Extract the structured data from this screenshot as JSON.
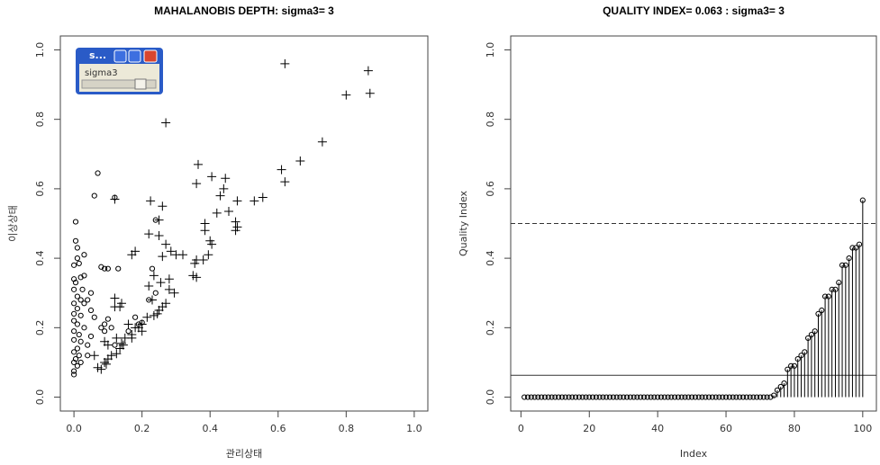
{
  "chart_data": [
    {
      "type": "scatter",
      "title": "MAHALANOBIS DEPTH: sigma3= 3",
      "x_label": "관리상태",
      "y_label": "이상상태",
      "xlim": [
        -0.04,
        1.04
      ],
      "ylim": [
        -0.04,
        1.04
      ],
      "xticks": [
        {
          "value": 0,
          "label": "0.0"
        },
        0.2,
        0.4,
        0.6,
        0.8,
        {
          "value": 1,
          "label": "1.0"
        }
      ],
      "yticks": [
        {
          "value": 0,
          "label": "0.0"
        },
        0.2,
        0.4,
        0.6,
        0.8,
        {
          "value": 1,
          "label": "1.0"
        }
      ],
      "series": [
        {
          "marker": "+",
          "color": "#000000",
          "x": [
            0.62,
            0.865,
            0.87,
            0.8,
            0.27,
            0.73,
            0.665,
            0.365,
            0.61,
            0.405,
            0.445,
            0.36,
            0.62,
            0.44,
            0.43,
            0.555,
            0.53,
            0.12,
            0.225,
            0.48,
            0.26,
            0.455,
            0.42,
            0.385,
            0.25,
            0.475,
            0.48,
            0.475,
            0.22,
            0.25,
            0.385,
            0.4,
            0.405,
            0.27,
            0.285,
            0.18,
            0.17,
            0.3,
            0.32,
            0.395,
            0.26,
            0.36,
            0.38,
            0.355,
            0.35,
            0.36,
            0.235,
            0.255,
            0.28,
            0.22,
            0.28,
            0.295,
            0.23,
            0.12,
            0.14,
            0.27,
            0.26,
            0.25,
            0.245,
            0.235,
            0.215,
            0.2,
            0.16,
            0.19,
            0.18,
            0.2,
            0.17,
            0.17,
            0.15,
            0.125,
            0.14,
            0.145,
            0.135,
            0.125,
            0.11,
            0.09,
            0.1,
            0.06,
            0.07,
            0.08,
            0.09,
            0.095,
            0.1,
            0.12,
            0.135
          ],
          "values": [
            0.96,
            0.94,
            0.875,
            0.87,
            0.79,
            0.735,
            0.68,
            0.67,
            0.655,
            0.635,
            0.63,
            0.615,
            0.62,
            0.6,
            0.58,
            0.575,
            0.565,
            0.57,
            0.565,
            0.565,
            0.55,
            0.535,
            0.53,
            0.5,
            0.51,
            0.505,
            0.49,
            0.48,
            0.47,
            0.465,
            0.48,
            0.45,
            0.44,
            0.44,
            0.42,
            0.42,
            0.41,
            0.41,
            0.41,
            0.41,
            0.405,
            0.395,
            0.395,
            0.385,
            0.35,
            0.345,
            0.35,
            0.33,
            0.34,
            0.32,
            0.31,
            0.3,
            0.28,
            0.285,
            0.27,
            0.27,
            0.26,
            0.25,
            0.24,
            0.235,
            0.23,
            0.21,
            0.21,
            0.2,
            0.2,
            0.19,
            0.18,
            0.17,
            0.17,
            0.17,
            0.155,
            0.15,
            0.14,
            0.125,
            0.12,
            0.16,
            0.15,
            0.12,
            0.085,
            0.08,
            0.1,
            0.095,
            0.11,
            0.26,
            0.26
          ]
        },
        {
          "marker": "o",
          "color": "#000000",
          "x": [
            0.07,
            0.06,
            0.12,
            0.005,
            0.24,
            0.005,
            0.01,
            0.03,
            0.01,
            0.015,
            0.0,
            0.08,
            0.09,
            0.1,
            0.13,
            0.23,
            0.02,
            0.0,
            0.005,
            0.03,
            0.0,
            0.05,
            0.01,
            0.02,
            0.04,
            0.0,
            0.03,
            0.01,
            0.05,
            0.0,
            0.02,
            0.1,
            0.09,
            0.0,
            0.01,
            0.03,
            0.0,
            0.015,
            0.05,
            0.0,
            0.02,
            0.04,
            0.01,
            0.0,
            0.015,
            0.005,
            0.0,
            0.01,
            0.0,
            0.0,
            0.04,
            0.02,
            0.09,
            0.11,
            0.18,
            0.19,
            0.2,
            0.16,
            0.12,
            0.22,
            0.24,
            0.08,
            0.06,
            0.025
          ],
          "values": [
            0.645,
            0.58,
            0.575,
            0.505,
            0.51,
            0.45,
            0.43,
            0.41,
            0.4,
            0.385,
            0.38,
            0.375,
            0.37,
            0.37,
            0.37,
            0.37,
            0.345,
            0.34,
            0.33,
            0.35,
            0.31,
            0.3,
            0.29,
            0.28,
            0.28,
            0.27,
            0.27,
            0.255,
            0.25,
            0.24,
            0.235,
            0.225,
            0.21,
            0.22,
            0.21,
            0.2,
            0.19,
            0.18,
            0.175,
            0.165,
            0.16,
            0.15,
            0.14,
            0.13,
            0.12,
            0.11,
            0.1,
            0.09,
            0.075,
            0.065,
            0.12,
            0.1,
            0.19,
            0.2,
            0.23,
            0.21,
            0.215,
            0.19,
            0.15,
            0.28,
            0.3,
            0.2,
            0.23,
            0.31
          ]
        }
      ]
    },
    {
      "type": "stem",
      "title": "QUALITY INDEX= 0.063 : sigma3= 3",
      "x_label": "Index",
      "y_label": "Quality Index",
      "xlim": [
        -3,
        104
      ],
      "ylim": [
        -0.04,
        1.04
      ],
      "xticks": [
        0,
        20,
        40,
        60,
        80,
        100
      ],
      "yticks": [
        {
          "value": 0,
          "label": "0.0"
        },
        0.2,
        0.4,
        0.6,
        0.8,
        {
          "value": 1,
          "label": "1.0"
        }
      ],
      "hlines": [
        {
          "value": 0.5,
          "style": "dashed"
        },
        {
          "value": 0.063,
          "style": "solid"
        }
      ],
      "series": [
        {
          "marker": "o",
          "color": "#000000",
          "x": [
            1,
            2,
            3,
            4,
            5,
            6,
            7,
            8,
            9,
            10,
            11,
            12,
            13,
            14,
            15,
            16,
            17,
            18,
            19,
            20,
            21,
            22,
            23,
            24,
            25,
            26,
            27,
            28,
            29,
            30,
            31,
            32,
            33,
            34,
            35,
            36,
            37,
            38,
            39,
            40,
            41,
            42,
            43,
            44,
            45,
            46,
            47,
            48,
            49,
            50,
            51,
            52,
            53,
            54,
            55,
            56,
            57,
            58,
            59,
            60,
            61,
            62,
            63,
            64,
            65,
            66,
            67,
            68,
            69,
            70,
            71,
            72,
            73,
            74,
            75,
            76,
            77,
            78,
            79,
            80,
            81,
            82,
            83,
            84,
            85,
            86,
            87,
            88,
            89,
            90,
            91,
            92,
            93,
            94,
            95,
            96,
            97,
            98,
            99,
            100
          ],
          "values": [
            0,
            0,
            0,
            0,
            0,
            0,
            0,
            0,
            0,
            0,
            0,
            0,
            0,
            0,
            0,
            0,
            0,
            0,
            0,
            0,
            0,
            0,
            0,
            0,
            0,
            0,
            0,
            0,
            0,
            0,
            0,
            0,
            0,
            0,
            0,
            0,
            0,
            0,
            0,
            0,
            0,
            0,
            0,
            0,
            0,
            0,
            0,
            0,
            0,
            0,
            0,
            0,
            0,
            0,
            0,
            0,
            0,
            0,
            0,
            0,
            0,
            0,
            0,
            0,
            0,
            0,
            0,
            0,
            0,
            0,
            0,
            0,
            0,
            0.005,
            0.02,
            0.03,
            0.04,
            0.08,
            0.09,
            0.09,
            0.11,
            0.12,
            0.13,
            0.17,
            0.18,
            0.19,
            0.24,
            0.25,
            0.29,
            0.29,
            0.31,
            0.31,
            0.33,
            0.38,
            0.38,
            0.4,
            0.43,
            0.43,
            0.44,
            0.567
          ]
        }
      ]
    }
  ],
  "widget": {
    "title": "s...",
    "label": "sigma3"
  }
}
